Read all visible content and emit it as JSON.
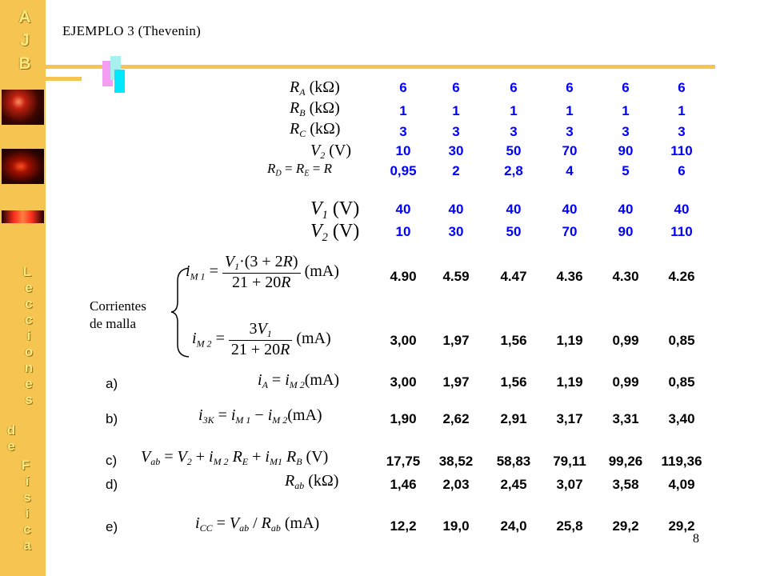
{
  "sidebar": {
    "top_letters": [
      "A",
      "J",
      "B"
    ],
    "vertical_letters": [
      "L",
      "e",
      "c",
      "c",
      "i",
      "o",
      "n",
      "e",
      "s",
      "d",
      "e",
      "F",
      "í",
      "s",
      "i",
      "c",
      "a"
    ],
    "colors": {
      "background": "#f5c451",
      "letters": "#f7ec82"
    }
  },
  "header": {
    "title": "EJEMPLO 3  (Thevenin)"
  },
  "page_number": "8",
  "labels": {
    "corrientes": "Corrientes",
    "de_malla": "de malla",
    "a": "a)",
    "b": "b)",
    "c": "c)",
    "d": "d)",
    "e": "e)"
  },
  "table": {
    "RA": [
      "6",
      "6",
      "6",
      "6",
      "6",
      "6"
    ],
    "RB": [
      "1",
      "1",
      "1",
      "1",
      "1",
      "1"
    ],
    "RC": [
      "3",
      "3",
      "3",
      "3",
      "3",
      "3"
    ],
    "V2": [
      "10",
      "30",
      "50",
      "70",
      "90",
      "110"
    ],
    "R": [
      "0,95",
      "2",
      "2,8",
      "4",
      "5",
      "6"
    ],
    "V1b": [
      "40",
      "40",
      "40",
      "40",
      "40",
      "40"
    ],
    "V2b": [
      "10",
      "30",
      "50",
      "70",
      "90",
      "110"
    ],
    "iM1": [
      "4.90",
      "4.59",
      "4.47",
      "4.36",
      "4.30",
      "4.26"
    ],
    "iM2": [
      "3,00",
      "1,97",
      "1,56",
      "1,19",
      "0,99",
      "0,85"
    ],
    "iA": [
      "3,00",
      "1,97",
      "1,56",
      "1,19",
      "0,99",
      "0,85"
    ],
    "i3K": [
      "1,90",
      "2,62",
      "2,91",
      "3,17",
      "3,31",
      "3,40"
    ],
    "Vab": [
      "17,75",
      "38,52",
      "58,83",
      "79,11",
      "99,26",
      "119,36"
    ],
    "Rab": [
      "1,46",
      "2,03",
      "2,45",
      "3,07",
      "3,58",
      "4,09"
    ],
    "iCC": [
      "12,2",
      "19,0",
      "24,0",
      "25,8",
      "29,2",
      "29,2"
    ]
  },
  "colors": {
    "input_values": "#0000ff",
    "results": "#000000"
  }
}
